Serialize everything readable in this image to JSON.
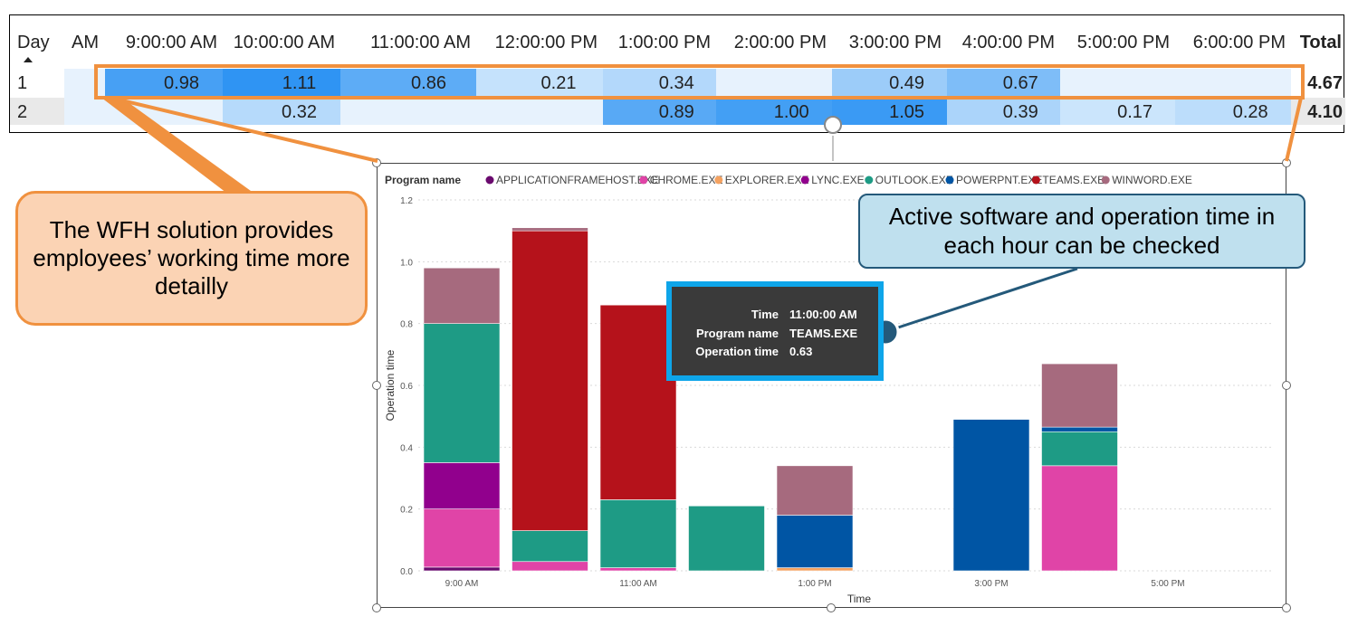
{
  "matrix": {
    "header": [
      "Day",
      "AM",
      "9:00:00 AM",
      "10:00:00 AM",
      "11:00:00 AM",
      "12:00:00 PM",
      "1:00:00 PM",
      "2:00:00 PM",
      "3:00:00 PM",
      "4:00:00 PM",
      "5:00:00 PM",
      "6:00:00 PM",
      "Total"
    ],
    "rows": [
      {
        "day": "1",
        "cells": [
          "",
          "0.98",
          "1.11",
          "0.86",
          "0.21",
          "0.34",
          "",
          "0.49",
          "0.67",
          "",
          ""
        ],
        "total": "4.67"
      },
      {
        "day": "2",
        "cells": [
          "",
          "",
          "0.32",
          "",
          "",
          "0.89",
          "1.00",
          "1.05",
          "0.39",
          "0.17",
          "0.28"
        ],
        "total": "4.10"
      }
    ],
    "heat_max_color": "#2f94f3",
    "heat_min_color": "#ddeefd"
  },
  "callouts": {
    "left": "The WFH solution provides employees’ working time more detailly",
    "right": "Active software and operation time in each hour can be checked"
  },
  "tooltip": {
    "rows": [
      {
        "key": "Time",
        "value": "11:00:00 AM"
      },
      {
        "key": "Program name",
        "value": "TEAMS.EXE"
      },
      {
        "key": "Operation time",
        "value": "0.63"
      }
    ]
  },
  "colors": {
    "callout_left_border": "#f0913f",
    "callout_right_border": "#24597a",
    "tooltip_border": "#0ea5e9"
  },
  "chart_data": {
    "type": "bar",
    "stacked": true,
    "legend_title": "Program name",
    "legend_position": "top-left",
    "xlabel": "Time",
    "ylabel": "Operation time",
    "ylim": [
      0,
      1.2
    ],
    "yticks": [
      "0.0",
      "0.2",
      "0.4",
      "0.6",
      "0.8",
      "1.0",
      "1.2"
    ],
    "categories": [
      "9:00 AM",
      "10:00 AM",
      "11:00 AM",
      "12:00 PM",
      "1:00 PM",
      "2:00 PM",
      "3:00 PM",
      "4:00 PM",
      "5:00 PM"
    ],
    "xtick_labels": [
      "9:00 AM",
      "",
      "11:00 AM",
      "",
      "1:00 PM",
      "",
      "3:00 PM",
      "",
      "5:00 PM"
    ],
    "gridlines": true,
    "series": [
      {
        "name": "APPLICATIONFRAMEHOST.EXE",
        "color": "#6a0a6e",
        "values": [
          0.012,
          0,
          0,
          0,
          0,
          0,
          0,
          0,
          0
        ]
      },
      {
        "name": "CHROME.EXE",
        "color": "#e044a7",
        "values": [
          0.188,
          0.03,
          0.01,
          0,
          0,
          0,
          0,
          0.34,
          0
        ]
      },
      {
        "name": "EXPLORER.EXE",
        "color": "#f4a261",
        "values": [
          0,
          0,
          0,
          0,
          0.01,
          0,
          0,
          0,
          0
        ]
      },
      {
        "name": "LYNC.EXE",
        "color": "#91008d",
        "values": [
          0.15,
          0,
          0,
          0,
          0,
          0,
          0,
          0,
          0
        ]
      },
      {
        "name": "OUTLOOK.EXE",
        "color": "#1e9b85",
        "values": [
          0.45,
          0.1,
          0.22,
          0.21,
          0,
          0,
          0,
          0.11,
          0
        ]
      },
      {
        "name": "POWERPNT.EXE",
        "color": "#0055a4",
        "values": [
          0,
          0,
          0,
          0,
          0.17,
          0,
          0.49,
          0.015,
          0
        ]
      },
      {
        "name": "TEAMS.EXE",
        "color": "#b5121b",
        "values": [
          0,
          0.97,
          0.63,
          0,
          0,
          0,
          0,
          0,
          0
        ]
      },
      {
        "name": "WINWORD.EXE",
        "color": "#a66a7e",
        "values": [
          0.18,
          0.01,
          0,
          0,
          0.16,
          0,
          0,
          0.205,
          0
        ]
      }
    ]
  }
}
